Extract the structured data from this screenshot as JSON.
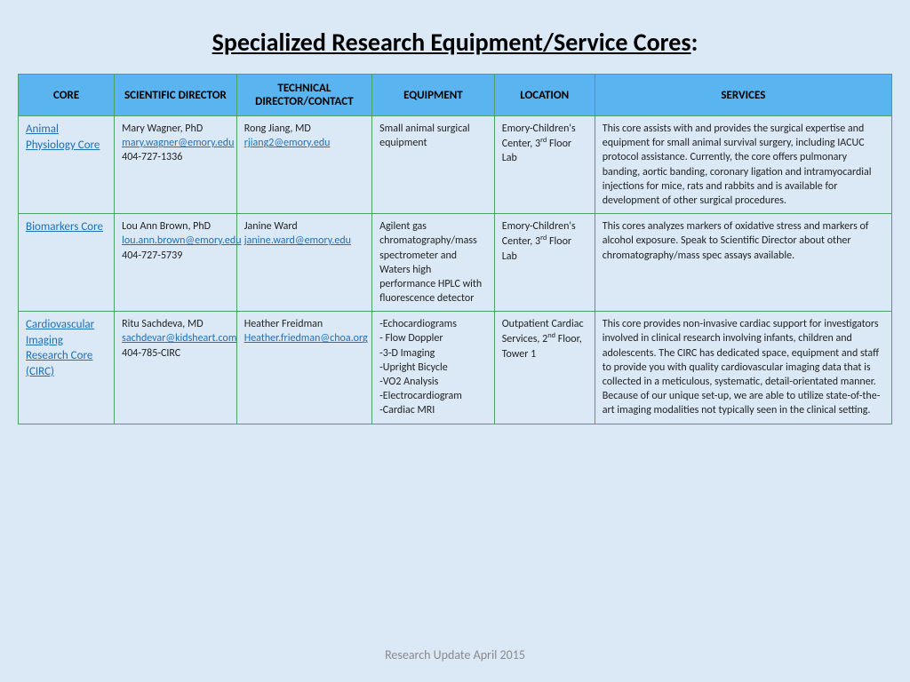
{
  "title_underlined": "Specialized Research Equipment/Service Cores",
  "title_suffix": ":",
  "footer": "Research Update April 2015",
  "columns": [
    "CORE",
    "SCIENTIFIC DIRECTOR",
    "TECHNICAL DIRECTOR/CONTACT",
    "EQUIPMENT",
    "LOCATION",
    "SERVICES"
  ],
  "colors": {
    "page_bg": "#dbe9f7",
    "header_bg": "#5ab4ef",
    "border": "#4ea068",
    "link": "#1f6fb5",
    "footer_text": "#8a8a8a"
  },
  "rows": [
    {
      "core_name": "Animal Physiology Core",
      "director_name": "Mary Wagner, PhD",
      "director_email": "mary.wagner@emory.edu",
      "director_phone": "404-727-1336",
      "tech_name": "Rong Jiang, MD",
      "tech_email": "rjiang2@emory.edu",
      "equipment": "Small animal surgical equipment",
      "location_html": "Emory-Children's Center, 3<sup>rd</sup> Floor Lab",
      "services": "This core assists with and provides the surgical expertise and equipment for small animal survival surgery, including IACUC protocol assistance. Currently, the core offers pulmonary banding, aortic banding, coronary ligation and intramyocardial injections for mice, rats and rabbits and is available for development of other surgical procedures."
    },
    {
      "core_name": "Biomarkers Core",
      "director_name": "Lou Ann Brown, PhD",
      "director_email": "lou.ann.brown@emory.edu",
      "director_phone": "404-727-5739",
      "tech_name": "Janine Ward",
      "tech_email": "janine.ward@emory.edu",
      "equipment": "Agilent gas chromatography/mass spectrometer and Waters high performance HPLC with fluorescence detector",
      "location_html": "Emory-Children's Center, 3<sup>rd</sup> Floor Lab",
      "services": "This cores analyzes markers of oxidative stress and markers of alcohol exposure. Speak to Scientific Director about other chromatography/mass spec assays available."
    },
    {
      "core_name": "Cardiovascular Imaging Research Core (CIRC)",
      "director_name": "Ritu Sachdeva, MD",
      "director_email": "sachdevar@kidsheart.com",
      "director_phone": "404-785-CIRC",
      "tech_name": "Heather Freidman",
      "tech_email": "Heather.friedman@choa.org",
      "equipment": "-Echocardiograms\n- Flow Doppler\n-3-D Imaging\n-Upright Bicycle\n-VO2  Analysis\n-Electrocardiogram\n-Cardiac MRI",
      "location_html": "Outpatient Cardiac Services, 2<sup>nd</sup> Floor, Tower 1",
      "services": "This core provides non-invasive cardiac support for investigators involved in clinical research involving infants, children and adolescents. The CIRC has dedicated space, equipment and staff to provide you with quality cardiovascular imaging data that is collected in a meticulous, systematic, detail-orientated manner. Because of our unique set-up, we are able to utilize state-of-the-art imaging modalities not typically seen in the clinical setting."
    }
  ]
}
